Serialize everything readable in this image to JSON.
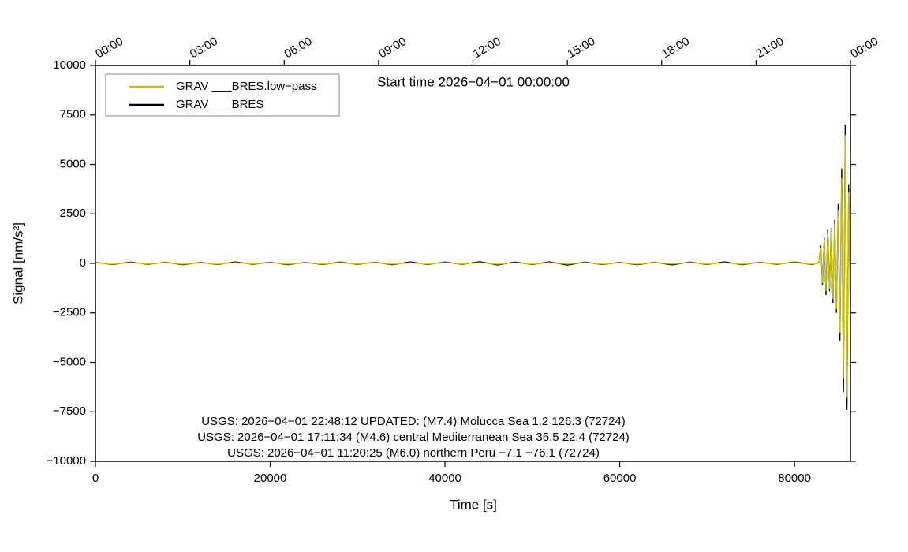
{
  "chart_data": {
    "type": "line",
    "title": "Start time 2026−04−01 00:00:00",
    "xlabel": "Time [s]",
    "ylabel": "Signal [nm/s²]",
    "annotations": [
      "USGS: 2026−04−01 22:48:12 UPDATED: (M7.4) Molucca Sea 1.2 126.3 (72724)",
      "USGS: 2026−04−01 17:11:34 (M4.6) central Mediterranean Sea 35.5 22.4 (72724)",
      "USGS: 2026−04−01 11:20:25 (M6.0) northern Peru −7.1 −76.1 (72724)"
    ],
    "legend": "upper-left",
    "xlim": [
      0,
      86400
    ],
    "ylim": [
      -10000,
      10000
    ],
    "xticks": [
      0,
      20000,
      40000,
      60000,
      80000
    ],
    "yticks": [
      {
        "value": -10000,
        "label": "−10000"
      },
      {
        "value": -7500,
        "label": "−7500"
      },
      {
        "value": -5000,
        "label": "−5000"
      },
      {
        "value": -2500,
        "label": "−2500"
      },
      0,
      2500,
      5000,
      7500,
      10000
    ],
    "top_xticks": [
      {
        "value": 0,
        "label": "00:00"
      },
      {
        "value": 10800,
        "label": "03:00"
      },
      {
        "value": 21600,
        "label": "06:00"
      },
      {
        "value": 32400,
        "label": "09:00"
      },
      {
        "value": 43200,
        "label": "12:00"
      },
      {
        "value": 54000,
        "label": "15:00"
      },
      {
        "value": 64800,
        "label": "18:00"
      },
      {
        "value": 75600,
        "label": "21:00"
      },
      {
        "value": 86400,
        "label": "00:00"
      }
    ],
    "x": [
      0,
      2000,
      4000,
      6000,
      8000,
      10000,
      12000,
      14000,
      16000,
      18000,
      20000,
      22000,
      24000,
      26000,
      28000,
      30000,
      32000,
      34000,
      36000,
      38000,
      40000,
      42000,
      44000,
      46000,
      48000,
      50000,
      52000,
      54000,
      56000,
      58000,
      60000,
      62000,
      64000,
      66000,
      68000,
      70000,
      72000,
      74000,
      76000,
      78000,
      80000,
      82000,
      82800,
      83000,
      83200,
      83400,
      83600,
      83800,
      84000,
      84200,
      84400,
      84600,
      84800,
      85000,
      85200,
      85400,
      85600,
      85800,
      86000,
      86200,
      86400
    ],
    "series": [
      {
        "name": "GRAV ___BRES.low−pass",
        "color": "#c8c000",
        "values": [
          30,
          -40,
          40,
          -30,
          40,
          -40,
          30,
          -40,
          40,
          -30,
          40,
          -40,
          30,
          -40,
          40,
          -30,
          40,
          -40,
          30,
          -40,
          40,
          -30,
          40,
          -40,
          30,
          -40,
          40,
          -30,
          40,
          -40,
          30,
          -40,
          40,
          -30,
          40,
          -40,
          30,
          -40,
          40,
          -30,
          40,
          -40,
          30,
          800,
          -1000,
          1200,
          -1400,
          1500,
          -1300,
          1600,
          -1800,
          2000,
          -2300,
          2700,
          -3500,
          4300,
          -5800,
          6500,
          -6800,
          3600,
          -2700
        ]
      },
      {
        "name": "GRAV ___BRES",
        "color": "#000000",
        "values": [
          50,
          -60,
          70,
          -50,
          60,
          -70,
          50,
          -60,
          80,
          -50,
          60,
          -70,
          50,
          -60,
          70,
          -50,
          60,
          -70,
          80,
          -60,
          70,
          -50,
          90,
          -80,
          70,
          -60,
          80,
          -90,
          70,
          -60,
          50,
          -70,
          60,
          -80,
          70,
          -60,
          80,
          -70,
          60,
          -50,
          70,
          -60,
          40,
          900,
          -1100,
          1300,
          -1600,
          1700,
          -1400,
          1800,
          -2000,
          2200,
          -2500,
          3000,
          -3900,
          4800,
          -6500,
          7000,
          -7400,
          4000,
          -3000
        ]
      }
    ]
  }
}
